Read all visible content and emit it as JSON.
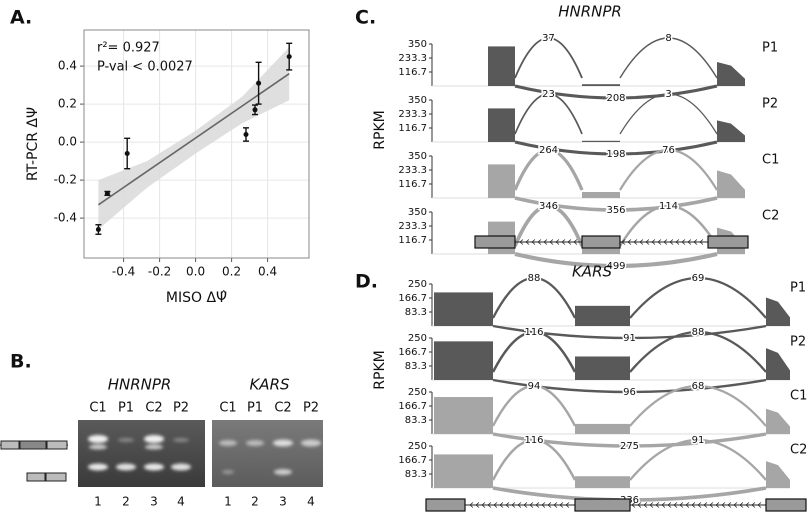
{
  "chart_data": [
    {
      "type": "scatter",
      "panel": "A.",
      "xlabel": "MISO ΔΨ̂",
      "ylabel": "RT-PCR ΔΨ",
      "annotations": [
        "r²= 0.927",
        "P-val < 0.0027"
      ],
      "x": [
        -0.54,
        -0.49,
        -0.38,
        0.28,
        0.33,
        0.35,
        0.52
      ],
      "y": [
        -0.46,
        -0.27,
        -0.06,
        0.04,
        0.17,
        0.31,
        0.45
      ],
      "err": [
        0.025,
        0.01,
        0.08,
        0.035,
        0.025,
        0.11,
        0.07
      ],
      "fit_x": [
        -0.54,
        0.52
      ],
      "fit_y": [
        -0.33,
        0.36
      ],
      "band_x": [
        -0.54,
        -0.27,
        0,
        0.26,
        0.52
      ],
      "band_lower": [
        -0.46,
        -0.24,
        -0.06,
        0.1,
        0.22
      ],
      "band_upper": [
        -0.2,
        -0.1,
        0.06,
        0.24,
        0.5
      ],
      "color": "#111111",
      "fit_color": "#666666",
      "band_color": "#d9d9d9",
      "xlim": [
        -0.62,
        0.63
      ],
      "ylim": [
        -0.61,
        0.59
      ],
      "xticks": [
        -0.4,
        -0.2,
        {
          "value": 0,
          "label": "0.0"
        },
        0.2,
        0.4
      ],
      "yticks": [
        -0.4,
        -0.2,
        {
          "value": 0,
          "label": "0.0"
        },
        0.2,
        0.4
      ],
      "grid": true
    },
    {
      "type": "sashimi",
      "panel": "C.",
      "gene": "HNRNPR",
      "ylabel": "RPKM",
      "ylim": [
        0,
        350
      ],
      "yticks": [
        116.7,
        233.3,
        350
      ],
      "series": [
        {
          "name": "P1",
          "color": "#595959",
          "values": [
            330,
            15,
            200
          ],
          "junctions": [
            37,
            8,
            208
          ]
        },
        {
          "name": "P2",
          "color": "#595959",
          "values": [
            280,
            10,
            180
          ],
          "junctions": [
            23,
            3,
            198
          ]
        },
        {
          "name": "C1",
          "color": "#a6a6a6",
          "values": [
            280,
            50,
            230
          ],
          "junctions": [
            264,
            76,
            356
          ]
        },
        {
          "name": "C2",
          "color": "#a6a6a6",
          "values": [
            270,
            45,
            220
          ],
          "junctions": [
            346,
            114,
            499
          ]
        }
      ]
    },
    {
      "type": "sashimi",
      "panel": "D.",
      "gene": "KARS",
      "ylabel": "RPKM",
      "ylim": [
        0,
        250
      ],
      "yticks": [
        83.3,
        166.7,
        250
      ],
      "series": [
        {
          "name": "P1",
          "color": "#595959",
          "values": [
            200,
            120,
            170
          ],
          "junctions": [
            88,
            69,
            91
          ]
        },
        {
          "name": "P2",
          "color": "#595959",
          "values": [
            230,
            140,
            190
          ],
          "junctions": [
            116,
            88,
            96
          ]
        },
        {
          "name": "C1",
          "color": "#a6a6a6",
          "values": [
            220,
            60,
            150
          ],
          "junctions": [
            94,
            68,
            275
          ]
        },
        {
          "name": "C2",
          "color": "#a6a6a6",
          "values": [
            200,
            70,
            160
          ],
          "junctions": [
            116,
            91,
            336
          ]
        }
      ]
    }
  ],
  "gel": {
    "panel": "B.",
    "blots": [
      {
        "gene": "HNRNPR",
        "lanes": [
          "C1",
          "P1",
          "C2",
          "P2"
        ],
        "lane_numbers": [
          "1",
          "2",
          "3",
          "4"
        ]
      },
      {
        "gene": "KARS",
        "lanes": [
          "C1",
          "P1",
          "C2",
          "P2"
        ],
        "lane_numbers": [
          "1",
          "2",
          "3",
          "4"
        ]
      }
    ]
  }
}
